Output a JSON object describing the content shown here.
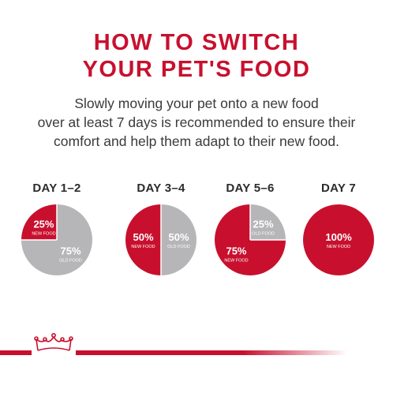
{
  "title": {
    "line1": "HOW TO SWITCH",
    "line2": "YOUR PET'S FOOD"
  },
  "intro": [
    "Slowly moving your pet onto a new food",
    "over at least 7 days is recommended to ensure their",
    "comfort and help them adapt to their new food."
  ],
  "colors": {
    "new_food": "#c8102e",
    "old_food": "#b6b6b8",
    "title": "#c8102e"
  },
  "logo_icon": "crown-icon",
  "chart_data": {
    "type": "pie",
    "charts": [
      {
        "day": "DAY 1–2",
        "new_food_pct": 25,
        "old_food_pct": 75,
        "new_label": "25%",
        "new_caption": "NEW FOOD",
        "old_label": "75%",
        "old_caption": "OLD FOOD"
      },
      {
        "day": "DAY 3–4",
        "new_food_pct": 50,
        "old_food_pct": 50,
        "new_label": "50%",
        "new_caption": "NEW FOOD",
        "old_label": "50%",
        "old_caption": "OLD FOOD"
      },
      {
        "day": "DAY 5–6",
        "new_food_pct": 75,
        "old_food_pct": 25,
        "new_label": "75%",
        "new_caption": "NEW FOOD",
        "old_label": "25%",
        "old_caption": "OLD FOOD"
      },
      {
        "day": "DAY 7",
        "new_food_pct": 100,
        "old_food_pct": 0,
        "new_label": "100%",
        "new_caption": "NEW FOOD",
        "old_label": "",
        "old_caption": ""
      }
    ]
  }
}
